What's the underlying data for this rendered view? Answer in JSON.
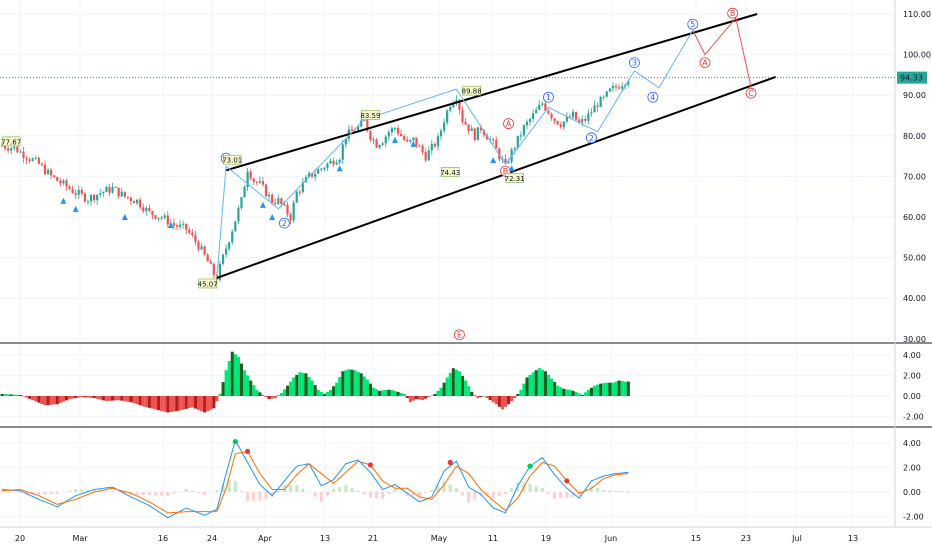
{
  "chart_data": [
    {
      "type": "candlestick",
      "name": "price",
      "yaxis": {
        "ticks": [
          30,
          40,
          50,
          60,
          70,
          80,
          90,
          100,
          110
        ],
        "tick_labels": [
          "30.00",
          "40.00",
          "50.00",
          "60.00",
          "70.00",
          "80.00",
          "90.00",
          "100.00",
          "110.00"
        ]
      },
      "xaxis": {
        "tick_labels": [
          "20",
          "Mar",
          "16",
          "24",
          "Apr",
          "13",
          "21",
          "May",
          "11",
          "19",
          "Jun",
          "15",
          "23",
          "Jul",
          "13"
        ]
      },
      "last_price": "94.33",
      "close_series": [
        [
          0,
          77.6
        ],
        [
          4,
          77
        ],
        [
          8,
          75
        ],
        [
          12,
          73
        ],
        [
          16,
          70
        ],
        [
          20,
          68
        ],
        [
          24,
          66
        ],
        [
          28,
          64.5
        ],
        [
          32,
          66
        ],
        [
          36,
          67
        ],
        [
          40,
          65
        ],
        [
          44,
          64
        ],
        [
          48,
          61
        ],
        [
          52,
          60
        ],
        [
          56,
          58
        ],
        [
          60,
          57
        ],
        [
          64,
          53
        ],
        [
          67,
          49
        ],
        [
          69,
          46
        ],
        [
          70,
          45.1
        ],
        [
          72,
          50
        ],
        [
          75,
          57
        ],
        [
          78,
          64
        ],
        [
          80,
          72
        ],
        [
          82,
          69
        ],
        [
          84,
          68
        ],
        [
          86,
          66
        ],
        [
          88,
          64
        ],
        [
          90,
          64
        ],
        [
          92,
          62
        ],
        [
          94,
          60
        ],
        [
          96,
          66
        ],
        [
          98,
          68
        ],
        [
          100,
          70
        ],
        [
          102,
          71
        ],
        [
          104,
          72
        ],
        [
          106,
          73
        ],
        [
          108,
          74
        ],
        [
          110,
          75
        ],
        [
          112,
          80
        ],
        [
          114,
          81
        ],
        [
          116,
          82
        ],
        [
          118,
          83.5
        ],
        [
          120,
          80
        ],
        [
          122,
          78
        ],
        [
          124,
          79
        ],
        [
          126,
          81
        ],
        [
          128,
          82
        ],
        [
          130,
          80
        ],
        [
          132,
          78
        ],
        [
          134,
          79
        ],
        [
          136,
          77
        ],
        [
          138,
          75
        ],
        [
          140,
          77
        ],
        [
          142,
          79
        ],
        [
          144,
          84
        ],
        [
          146,
          88
        ],
        [
          148,
          89.9
        ],
        [
          150,
          84
        ],
        [
          152,
          82
        ],
        [
          154,
          80
        ],
        [
          156,
          82
        ],
        [
          158,
          80
        ],
        [
          160,
          78
        ],
        [
          162,
          75
        ],
        [
          164,
          72.5
        ],
        [
          166,
          76
        ],
        [
          168,
          79
        ],
        [
          170,
          82
        ],
        [
          172,
          84
        ],
        [
          174,
          86
        ],
        [
          176,
          88
        ],
        [
          178,
          86
        ],
        [
          180,
          84
        ],
        [
          182,
          83
        ],
        [
          184,
          84
        ],
        [
          186,
          85
        ],
        [
          188,
          83
        ],
        [
          190,
          84
        ],
        [
          192,
          86
        ],
        [
          194,
          88
        ],
        [
          196,
          89
        ],
        [
          198,
          91
        ],
        [
          200,
          92
        ],
        [
          202,
          93
        ],
        [
          204,
          94.3
        ]
      ],
      "price_labels": [
        "77.67",
        "73.01",
        "83.59",
        "89.88",
        "74.43",
        "72.31",
        "45.07"
      ],
      "waves_blue": [
        "1",
        "2",
        "1",
        "2",
        "3",
        "4",
        "5"
      ],
      "waves_red": [
        "B",
        "A",
        "B",
        "A",
        "C",
        "E"
      ],
      "channel": {
        "upper": [
          [
            73,
            71.5
          ],
          [
            246,
            110
          ]
        ],
        "lower": [
          [
            70,
            45
          ],
          [
            252,
            94.5
          ]
        ]
      }
    },
    {
      "type": "histogram",
      "name": "oscillator-1",
      "yaxis": {
        "ticks": [
          -2,
          0,
          2,
          4
        ],
        "tick_labels": [
          "-2.00",
          "0.00",
          "2.00",
          "4.00"
        ]
      },
      "values": [
        [
          0,
          0.2
        ],
        [
          6,
          0.1
        ],
        [
          10,
          -0.4
        ],
        [
          14,
          -0.9
        ],
        [
          18,
          -0.8
        ],
        [
          22,
          -0.3
        ],
        [
          26,
          -0.1
        ],
        [
          30,
          -0.2
        ],
        [
          34,
          -0.5
        ],
        [
          38,
          -0.4
        ],
        [
          42,
          -0.6
        ],
        [
          46,
          -1
        ],
        [
          50,
          -1.3
        ],
        [
          54,
          -1.6
        ],
        [
          58,
          -1.4
        ],
        [
          62,
          -1.1
        ],
        [
          66,
          -1.6
        ],
        [
          69,
          -1.2
        ],
        [
          71,
          0.2
        ],
        [
          73,
          2.5
        ],
        [
          75,
          4.3
        ],
        [
          77,
          3.8
        ],
        [
          79,
          2.5
        ],
        [
          81,
          1.5
        ],
        [
          83,
          0.6
        ],
        [
          85,
          0.1
        ],
        [
          87,
          -0.3
        ],
        [
          89,
          -0.2
        ],
        [
          91,
          0.3
        ],
        [
          93,
          1
        ],
        [
          95,
          1.8
        ],
        [
          97,
          2.3
        ],
        [
          99,
          2.2
        ],
        [
          101,
          1.5
        ],
        [
          103,
          0.6
        ],
        [
          105,
          0.2
        ],
        [
          107,
          0.6
        ],
        [
          109,
          1.3
        ],
        [
          111,
          2.4
        ],
        [
          113,
          2.6
        ],
        [
          115,
          2.5
        ],
        [
          117,
          2.2
        ],
        [
          119,
          1.6
        ],
        [
          121,
          0.8
        ],
        [
          123,
          0.5
        ],
        [
          125,
          0.6
        ],
        [
          127,
          0.6
        ],
        [
          129,
          0.4
        ],
        [
          131,
          0.2
        ],
        [
          133,
          -0.6
        ],
        [
          135,
          -0.3
        ],
        [
          137,
          -0.4
        ],
        [
          139,
          -0.1
        ],
        [
          141,
          0.2
        ],
        [
          143,
          0.8
        ],
        [
          145,
          1.8
        ],
        [
          147,
          2.7
        ],
        [
          149,
          2.4
        ],
        [
          151,
          1.5
        ],
        [
          153,
          0.4
        ],
        [
          155,
          -0.2
        ],
        [
          157,
          0
        ],
        [
          159,
          -0.4
        ],
        [
          161,
          -0.8
        ],
        [
          163,
          -1.3
        ],
        [
          165,
          -0.8
        ],
        [
          167,
          -0.2
        ],
        [
          169,
          0.6
        ],
        [
          171,
          1.8
        ],
        [
          173,
          2.3
        ],
        [
          175,
          2.7
        ],
        [
          177,
          2.4
        ],
        [
          179,
          1.7
        ],
        [
          181,
          1
        ],
        [
          183,
          0.7
        ],
        [
          185,
          0.6
        ],
        [
          187,
          0.4
        ],
        [
          189,
          0.1
        ],
        [
          191,
          0.6
        ],
        [
          193,
          1
        ],
        [
          195,
          1.2
        ],
        [
          197,
          1.3
        ],
        [
          199,
          1.3
        ],
        [
          201,
          1.5
        ],
        [
          203,
          1.4
        ]
      ]
    },
    {
      "type": "line",
      "name": "oscillator-2",
      "yaxis": {
        "ticks": [
          -2,
          0,
          2,
          4
        ],
        "tick_labels": [
          "-2.00",
          "0.00",
          "2.00",
          "4.00"
        ]
      },
      "series": [
        {
          "color": "#2196f3",
          "values": [
            [
              0,
              0.2
            ],
            [
              6,
              0.1
            ],
            [
              12,
              -0.6
            ],
            [
              18,
              -1.2
            ],
            [
              24,
              -0.3
            ],
            [
              30,
              0.2
            ],
            [
              36,
              0.4
            ],
            [
              42,
              -0.4
            ],
            [
              48,
              -1.1
            ],
            [
              54,
              -2.1
            ],
            [
              60,
              -1.3
            ],
            [
              66,
              -1.9
            ],
            [
              70,
              -1.4
            ],
            [
              73,
              1.5
            ],
            [
              76,
              4.2
            ],
            [
              80,
              2.4
            ],
            [
              84,
              0.6
            ],
            [
              88,
              -0.3
            ],
            [
              92,
              0.9
            ],
            [
              96,
              2.1
            ],
            [
              100,
              2.3
            ],
            [
              104,
              0.5
            ],
            [
              108,
              1
            ],
            [
              112,
              2.3
            ],
            [
              116,
              2.6
            ],
            [
              120,
              1.6
            ],
            [
              124,
              0.2
            ],
            [
              128,
              0.6
            ],
            [
              132,
              -0.1
            ],
            [
              136,
              -0.8
            ],
            [
              140,
              -0.4
            ],
            [
              144,
              1.7
            ],
            [
              148,
              2.5
            ],
            [
              152,
              0.4
            ],
            [
              156,
              -0.2
            ],
            [
              160,
              -1.3
            ],
            [
              164,
              -1.7
            ],
            [
              168,
              0.5
            ],
            [
              172,
              2.1
            ],
            [
              176,
              2.8
            ],
            [
              180,
              1.4
            ],
            [
              184,
              0.3
            ],
            [
              188,
              -0.5
            ],
            [
              192,
              0.9
            ],
            [
              196,
              1.3
            ],
            [
              200,
              1.5
            ],
            [
              204,
              1.6
            ]
          ]
        },
        {
          "color": "#ff6d00",
          "values": [
            [
              0,
              0.1
            ],
            [
              6,
              0.2
            ],
            [
              12,
              -0.3
            ],
            [
              18,
              -1
            ],
            [
              24,
              -0.6
            ],
            [
              30,
              0
            ],
            [
              36,
              0.3
            ],
            [
              42,
              -0.1
            ],
            [
              48,
              -0.8
            ],
            [
              54,
              -1.7
            ],
            [
              60,
              -1.6
            ],
            [
              66,
              -1.6
            ],
            [
              70,
              -1.6
            ],
            [
              73,
              0.3
            ],
            [
              76,
              3.1
            ],
            [
              80,
              3.3
            ],
            [
              84,
              1.5
            ],
            [
              88,
              0.2
            ],
            [
              92,
              0.2
            ],
            [
              96,
              1.4
            ],
            [
              100,
              2.3
            ],
            [
              104,
              1.5
            ],
            [
              108,
              0.7
            ],
            [
              112,
              1.6
            ],
            [
              116,
              2.5
            ],
            [
              120,
              2.2
            ],
            [
              124,
              0.9
            ],
            [
              128,
              0.3
            ],
            [
              132,
              0.3
            ],
            [
              136,
              -0.4
            ],
            [
              140,
              -0.6
            ],
            [
              144,
              0.6
            ],
            [
              148,
              2.1
            ],
            [
              152,
              1.5
            ],
            [
              156,
              0.2
            ],
            [
              160,
              -0.7
            ],
            [
              164,
              -1.5
            ],
            [
              168,
              -0.5
            ],
            [
              172,
              1.3
            ],
            [
              176,
              2.4
            ],
            [
              180,
              2.1
            ],
            [
              184,
              0.9
            ],
            [
              188,
              -0.1
            ],
            [
              192,
              0.3
            ],
            [
              196,
              1.1
            ],
            [
              200,
              1.4
            ],
            [
              204,
              1.5
            ]
          ]
        }
      ],
      "markers_green": [
        [
          76,
          4.1
        ],
        [
          172,
          2.1
        ]
      ],
      "markers_red": [
        [
          80,
          3.3
        ],
        [
          120,
          2.2
        ],
        [
          146,
          2.4
        ],
        [
          184,
          0.9
        ]
      ]
    }
  ],
  "colors": {
    "up": "#26a69a",
    "down": "#ef5350",
    "hist_up": "#00e676",
    "hist_down": "#d32f2f",
    "wave_blue": "#2962ff",
    "wave_red": "#e53935",
    "price_line": "#26a69a",
    "price_badge": "#26a69a"
  }
}
